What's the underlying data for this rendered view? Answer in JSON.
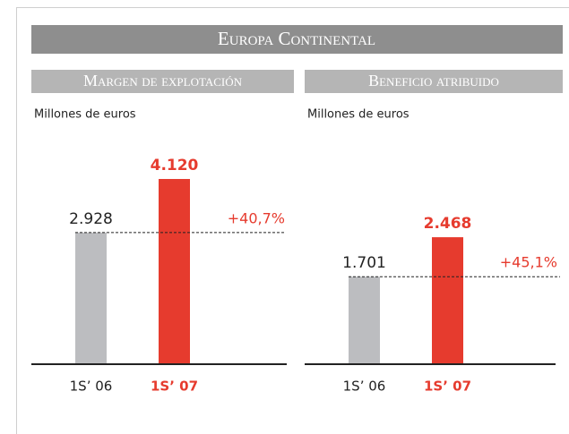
{
  "header": {
    "title": "Europa Continental"
  },
  "chart_data": [
    {
      "type": "bar",
      "title": "Margen de explotación",
      "subtitle": "Millones de euros",
      "categories": [
        "1S’ 06",
        "1S’ 07"
      ],
      "values": [
        2928,
        4120
      ],
      "value_labels": [
        "2.928",
        "4.120"
      ],
      "colors": [
        "#bcbdc0",
        "#e63b2e"
      ],
      "annotation": "+40,7%"
    },
    {
      "type": "bar",
      "title": "Beneficio atribuido",
      "subtitle": "Millones de euros",
      "categories": [
        "1S’ 06",
        "1S’ 07"
      ],
      "values": [
        1701,
        2468
      ],
      "value_labels": [
        "1.701",
        "2.468"
      ],
      "colors": [
        "#bcbdc0",
        "#e63b2e"
      ],
      "annotation": "+45,1%"
    }
  ]
}
